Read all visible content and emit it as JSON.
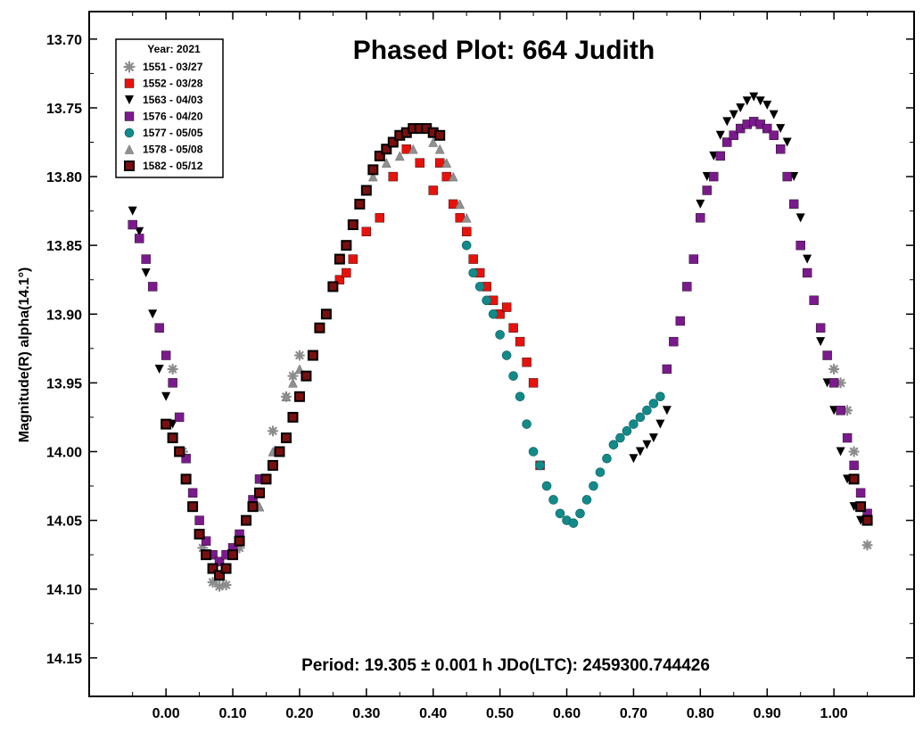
{
  "chart_data": {
    "type": "scatter",
    "title": "Phased Plot: 664 Judith",
    "ylabel": "Magnitude(R) alpha(14.1°)",
    "xlabel": "",
    "footer": "Period: 19.305 ± 0.001 h  JDo(LTC): 2459300.744426",
    "xlim": [
      -0.115,
      1.12
    ],
    "ylim": [
      13.68,
      14.178
    ],
    "y_inverted": true,
    "x_ticks": [
      "0.00",
      "0.10",
      "0.20",
      "0.30",
      "0.40",
      "0.50",
      "0.60",
      "0.70",
      "0.80",
      "0.90",
      "1.00"
    ],
    "y_ticks": [
      "13.70",
      "13.75",
      "13.80",
      "13.85",
      "13.90",
      "13.95",
      "14.00",
      "14.05",
      "14.10",
      "14.15"
    ],
    "legend": {
      "title": "Year: 2021",
      "placement": "top-left"
    },
    "series": [
      {
        "name": "1551 - 03/27",
        "marker": "asterisk",
        "color": "#8c8c8c",
        "x": [
          0.01,
          0.025,
          0.04,
          0.055,
          0.07,
          0.08,
          0.09,
          0.11,
          0.14,
          0.16,
          0.18,
          0.19,
          0.2,
          1.0,
          1.01,
          1.02,
          1.03,
          1.04,
          1.05
        ],
        "y": [
          13.94,
          14.0,
          14.04,
          14.07,
          14.095,
          14.098,
          14.097,
          14.07,
          14.03,
          13.985,
          13.96,
          13.945,
          13.93,
          13.94,
          13.95,
          13.97,
          14.0,
          14.04,
          14.068
        ]
      },
      {
        "name": "1552 - 03/28",
        "marker": "square",
        "color": "#e8120c",
        "x": [
          0.25,
          0.26,
          0.27,
          0.28,
          0.3,
          0.32,
          0.34,
          0.36,
          0.38,
          0.4,
          0.41,
          0.42,
          0.43,
          0.44,
          0.45,
          0.46,
          0.47,
          0.48,
          0.49,
          0.5,
          0.51,
          0.52,
          0.53,
          0.54,
          0.55,
          0.56
        ],
        "y": [
          13.88,
          13.875,
          13.87,
          13.86,
          13.84,
          13.83,
          13.8,
          13.78,
          13.79,
          13.81,
          13.79,
          13.8,
          13.82,
          13.83,
          13.84,
          13.86,
          13.87,
          13.88,
          13.89,
          13.9,
          13.895,
          13.91,
          13.92,
          13.935,
          13.95,
          14.01
        ]
      },
      {
        "name": "1563 - 04/03",
        "marker": "triangle-down",
        "color": "#000000",
        "x": [
          -0.05,
          -0.04,
          -0.03,
          -0.02,
          -0.01,
          0.0,
          0.01,
          0.02,
          0.7,
          0.71,
          0.72,
          0.73,
          0.74,
          0.75,
          0.8,
          0.81,
          0.82,
          0.83,
          0.84,
          0.85,
          0.86,
          0.87,
          0.88,
          0.89,
          0.9,
          0.91,
          0.92,
          0.93,
          0.94,
          0.95,
          0.96,
          0.97,
          0.98,
          0.99,
          1.0,
          1.01,
          1.02,
          1.03,
          1.04
        ],
        "y": [
          13.825,
          13.84,
          13.87,
          13.9,
          13.94,
          13.96,
          13.98,
          14.0,
          14.005,
          14.0,
          13.995,
          13.99,
          13.98,
          13.97,
          13.82,
          13.8,
          13.785,
          13.77,
          13.76,
          13.755,
          13.75,
          13.745,
          13.742,
          13.745,
          13.748,
          13.755,
          13.765,
          13.775,
          13.8,
          13.83,
          13.86,
          13.89,
          13.92,
          13.95,
          13.97,
          14.0,
          14.02,
          14.04,
          14.05
        ]
      },
      {
        "name": "1576 - 04/20",
        "marker": "square",
        "color": "#7b1a8c",
        "x": [
          -0.05,
          -0.04,
          -0.03,
          -0.02,
          -0.01,
          0.0,
          0.01,
          0.02,
          0.03,
          0.04,
          0.05,
          0.06,
          0.07,
          0.08,
          0.09,
          0.1,
          0.11,
          0.12,
          0.13,
          0.14,
          0.75,
          0.76,
          0.77,
          0.78,
          0.79,
          0.8,
          0.81,
          0.82,
          0.83,
          0.84,
          0.85,
          0.86,
          0.87,
          0.88,
          0.89,
          0.9,
          0.91,
          0.92,
          0.93,
          0.94,
          0.95,
          0.96,
          0.97,
          0.98,
          0.99,
          1.0,
          1.01,
          1.02,
          1.03,
          1.04,
          1.05
        ],
        "y": [
          13.835,
          13.845,
          13.86,
          13.88,
          13.91,
          13.93,
          13.95,
          13.975,
          14.005,
          14.03,
          14.05,
          14.065,
          14.075,
          14.08,
          14.075,
          14.07,
          14.06,
          14.05,
          14.035,
          14.02,
          13.94,
          13.92,
          13.905,
          13.88,
          13.86,
          13.83,
          13.81,
          13.8,
          13.785,
          13.775,
          13.77,
          13.765,
          13.762,
          13.76,
          13.762,
          13.765,
          13.77,
          13.78,
          13.8,
          13.82,
          13.85,
          13.87,
          13.89,
          13.91,
          13.93,
          13.95,
          13.97,
          13.99,
          14.01,
          14.03,
          14.045
        ]
      },
      {
        "name": "1577 - 05/05",
        "marker": "circle",
        "color": "#138a8a",
        "x": [
          0.45,
          0.46,
          0.47,
          0.48,
          0.49,
          0.5,
          0.51,
          0.52,
          0.53,
          0.54,
          0.55,
          0.56,
          0.57,
          0.58,
          0.59,
          0.6,
          0.61,
          0.62,
          0.63,
          0.64,
          0.65,
          0.66,
          0.67,
          0.68,
          0.69,
          0.7,
          0.71,
          0.72,
          0.73,
          0.74
        ],
        "y": [
          13.85,
          13.87,
          13.88,
          13.89,
          13.9,
          13.915,
          13.93,
          13.945,
          13.96,
          13.98,
          14.0,
          14.01,
          14.025,
          14.035,
          14.045,
          14.05,
          14.052,
          14.045,
          14.035,
          14.025,
          14.015,
          14.005,
          13.995,
          13.99,
          13.985,
          13.98,
          13.975,
          13.97,
          13.965,
          13.96
        ]
      },
      {
        "name": "1578 - 05/08",
        "marker": "triangle-up",
        "color": "#909090",
        "x": [
          0.14,
          0.16,
          0.18,
          0.19,
          0.2,
          0.31,
          0.33,
          0.35,
          0.37,
          0.4,
          0.41,
          0.42,
          0.43,
          0.44,
          0.45
        ],
        "y": [
          14.04,
          14.0,
          13.96,
          13.95,
          13.94,
          13.8,
          13.79,
          13.785,
          13.78,
          13.775,
          13.78,
          13.79,
          13.8,
          13.82,
          13.83
        ]
      },
      {
        "name": "1582 - 05/12",
        "marker": "square-bordered",
        "color": "#7a0f0f",
        "x": [
          0.0,
          0.01,
          0.02,
          0.03,
          0.04,
          0.05,
          0.06,
          0.07,
          0.08,
          0.09,
          0.1,
          0.11,
          0.12,
          0.13,
          0.14,
          0.15,
          0.16,
          0.17,
          0.18,
          0.19,
          0.2,
          0.21,
          0.22,
          0.23,
          0.24,
          0.25,
          0.26,
          0.27,
          0.28,
          0.29,
          0.3,
          0.31,
          0.32,
          0.33,
          0.34,
          0.35,
          0.36,
          0.37,
          0.38,
          0.39,
          0.4,
          0.41,
          1.03,
          1.04,
          1.05
        ],
        "y": [
          13.98,
          13.99,
          14.0,
          14.02,
          14.04,
          14.06,
          14.075,
          14.085,
          14.09,
          14.085,
          14.075,
          14.065,
          14.05,
          14.04,
          14.03,
          14.02,
          14.01,
          14.0,
          13.99,
          13.975,
          13.96,
          13.945,
          13.93,
          13.91,
          13.9,
          13.88,
          13.86,
          13.85,
          13.835,
          13.82,
          13.81,
          13.795,
          13.785,
          13.78,
          13.775,
          13.77,
          13.768,
          13.765,
          13.765,
          13.765,
          13.768,
          13.77,
          14.02,
          14.04,
          14.05
        ]
      }
    ]
  }
}
